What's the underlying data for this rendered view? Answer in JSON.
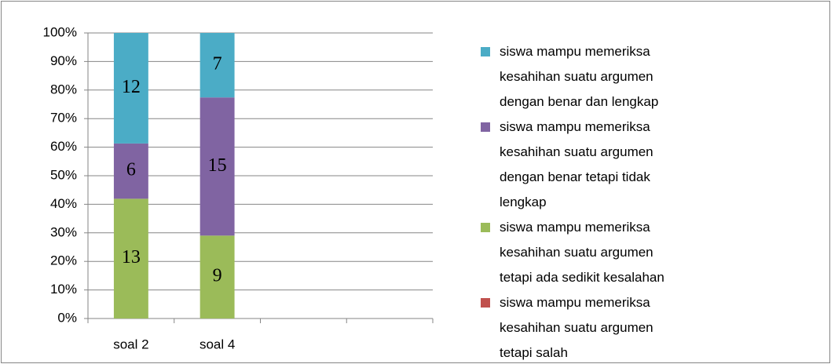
{
  "chart_data": {
    "type": "bar",
    "stack": "percent",
    "categories": [
      "soal 2",
      "soal 4",
      null,
      null
    ],
    "series": [
      {
        "name": "siswa mampu memeriksa kesahihan suatu argumen dengan benar dan lengkap",
        "color": "#4bacc6",
        "values": [
          12,
          7,
          null,
          null
        ]
      },
      {
        "name": "siswa mampu memeriksa kesahihan suatu argumen dengan benar tetapi tidak lengkap",
        "color": "#8064a2",
        "values": [
          6,
          15,
          null,
          null
        ]
      },
      {
        "name": "siswa mampu memeriksa kesahihan suatu argumen tetapi ada sedikit kesalahan",
        "color": "#9bbb59",
        "values": [
          13,
          9,
          null,
          null
        ]
      },
      {
        "name": "siswa mampu memeriksa kesahihan suatu argumen tetapi salah",
        "color": "#c0504d",
        "values": [
          0,
          0,
          null,
          null
        ]
      }
    ],
    "ylim": [
      0,
      100
    ],
    "yticks": [
      {
        "value": 0,
        "label": "0%"
      },
      {
        "value": 10,
        "label": "10%"
      },
      {
        "value": 20,
        "label": "20%"
      },
      {
        "value": 30,
        "label": "30%"
      },
      {
        "value": 40,
        "label": "40%"
      },
      {
        "value": 50,
        "label": "50%"
      },
      {
        "value": 60,
        "label": "60%"
      },
      {
        "value": 70,
        "label": "70%"
      },
      {
        "value": 80,
        "label": "80%"
      },
      {
        "value": 90,
        "label": "90%"
      },
      {
        "value": 100,
        "label": "100%"
      }
    ],
    "grid": true,
    "legend": "right"
  }
}
